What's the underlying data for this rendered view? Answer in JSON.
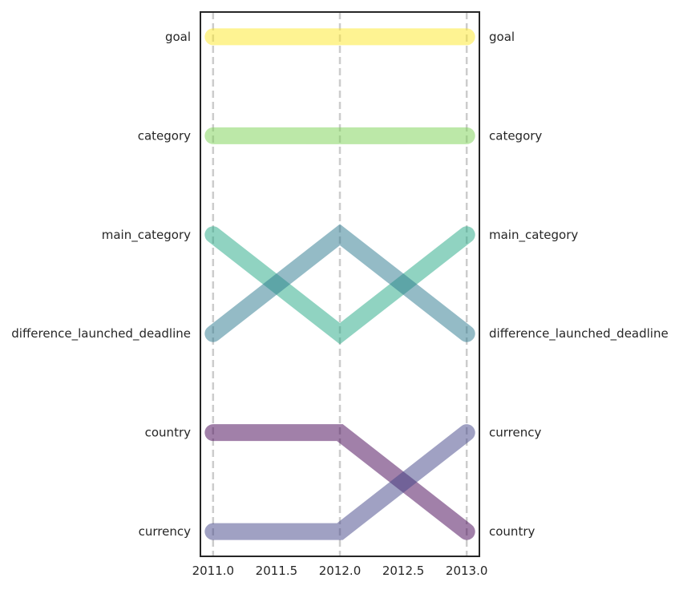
{
  "chart_data": {
    "type": "line",
    "title": "",
    "xlabel": "",
    "ylabel": "",
    "x": [
      2011.0,
      2012.0,
      2013.0
    ],
    "xlim": [
      2010.9,
      2013.1
    ],
    "ylim": [
      0.75,
      6.25
    ],
    "x_ticks": [
      {
        "value": 2011.0,
        "label": "2011.0"
      },
      {
        "value": 2011.5,
        "label": "2011.5"
      },
      {
        "value": 2012.0,
        "label": "2012.0"
      },
      {
        "value": 2012.5,
        "label": "2012.5"
      },
      {
        "value": 2013.0,
        "label": "2013.0"
      }
    ],
    "vertical_gridlines_at": [
      2011.0,
      2012.0,
      2013.0
    ],
    "rank_labels": {
      "left": [
        "goal",
        "category",
        "main_category",
        "difference_launched_deadline",
        "country",
        "currency"
      ],
      "right": [
        "goal",
        "category",
        "main_category",
        "difference_launched_deadline",
        "currency",
        "country"
      ]
    },
    "series": [
      {
        "name": "goal",
        "ranks": [
          1,
          1,
          1
        ],
        "color": "#fde725"
      },
      {
        "name": "category",
        "ranks": [
          2,
          2,
          2
        ],
        "color": "#7ad151"
      },
      {
        "name": "main_category",
        "ranks": [
          3,
          4,
          3
        ],
        "color": "#22a884"
      },
      {
        "name": "difference_launched_deadline",
        "ranks": [
          4,
          3,
          4
        ],
        "color": "#2a788e"
      },
      {
        "name": "country",
        "ranks": [
          5,
          5,
          6
        ],
        "color": "#440154"
      },
      {
        "name": "currency",
        "ranks": [
          6,
          6,
          5
        ],
        "color": "#414487"
      }
    ],
    "grid": false,
    "legend": "none"
  }
}
